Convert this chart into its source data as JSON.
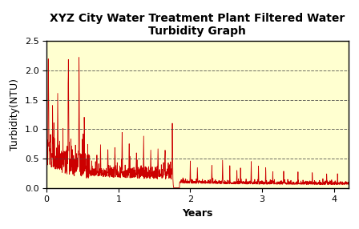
{
  "title": "XYZ City Water Treatment Plant Filtered Water\nTurbidity Graph",
  "xlabel": "Years",
  "ylabel": "Turbidity(NTU)",
  "xlim": [
    0,
    4.2
  ],
  "ylim": [
    0.0,
    2.5
  ],
  "yticks": [
    0.0,
    0.5,
    1.0,
    1.5,
    2.0,
    2.5
  ],
  "grid_yticks": [
    0.5,
    1.0,
    1.5,
    2.0
  ],
  "xticks": [
    0,
    1,
    2,
    3,
    4
  ],
  "background_color": "#FFFFD0",
  "line_color": "#CC0000",
  "grid_color": "#444444",
  "title_fontsize": 10,
  "axis_label_fontsize": 9,
  "tick_fontsize": 8,
  "n_points": 2000,
  "seed": 12
}
